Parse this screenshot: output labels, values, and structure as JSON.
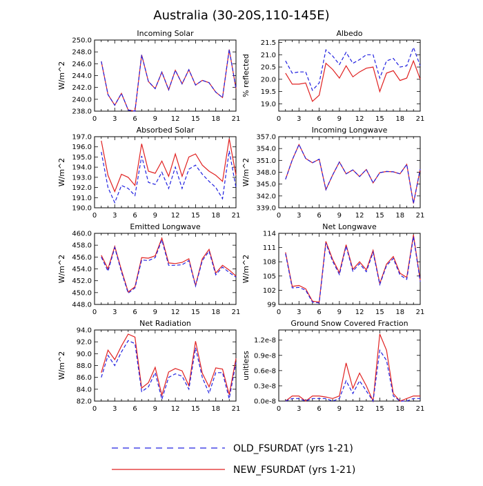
{
  "figure": {
    "title": "Australia (30-20S,110-145E)",
    "colors": {
      "old": "#2020e0",
      "new": "#e02020",
      "axis": "#000000"
    }
  },
  "legend": {
    "entries": [
      {
        "label": "OLD_FSURDAT (yrs 1-21)",
        "style": "dashed",
        "color": "#2020e0"
      },
      {
        "label": "NEW_FSURDAT (yrs 1-21)",
        "style": "solid",
        "color": "#e02020"
      }
    ]
  },
  "chart_data": [
    {
      "type": "line",
      "title": "Incoming Solar",
      "ylabel": "W/m^2",
      "xlim": [
        0,
        21
      ],
      "ylim": [
        238,
        250
      ],
      "xticks": [
        "0",
        "3",
        "6",
        "9",
        "12",
        "15",
        "18",
        "21"
      ],
      "yticks": [
        "238.0",
        "240.0",
        "242.0",
        "244.0",
        "246.0",
        "248.0",
        "250.0"
      ],
      "x": [
        1,
        2,
        3,
        4,
        5,
        6,
        7,
        8,
        9,
        10,
        11,
        12,
        13,
        14,
        15,
        16,
        17,
        18,
        19,
        20,
        21
      ],
      "series": [
        {
          "name": "OLD_FSURDAT (yrs 1-21)",
          "values": [
            246.4,
            240.8,
            239.0,
            241.0,
            238.2,
            238.0,
            247.5,
            243.0,
            241.8,
            244.6,
            241.6,
            244.9,
            242.6,
            245.0,
            242.4,
            243.2,
            242.8,
            241.2,
            240.3,
            248.4,
            241.8
          ]
        },
        {
          "name": "NEW_FSURDAT (yrs 1-21)",
          "values": [
            246.4,
            240.8,
            239.0,
            241.0,
            238.2,
            238.0,
            247.5,
            243.0,
            241.8,
            244.6,
            241.6,
            244.9,
            242.6,
            245.0,
            242.4,
            243.2,
            242.8,
            241.2,
            240.3,
            248.4,
            241.8
          ]
        }
      ]
    },
    {
      "type": "line",
      "title": "Albedo",
      "ylabel": "% reflected",
      "xlim": [
        0,
        21
      ],
      "ylim": [
        18.7,
        21.6
      ],
      "xticks": [
        "0",
        "3",
        "6",
        "9",
        "12",
        "15",
        "18",
        "21"
      ],
      "yticks": [
        "19.0",
        "19.5",
        "20.0",
        "20.5",
        "21.0",
        "21.5"
      ],
      "x": [
        1,
        2,
        3,
        4,
        5,
        6,
        7,
        8,
        9,
        10,
        11,
        12,
        13,
        14,
        15,
        16,
        17,
        18,
        19,
        20,
        21
      ],
      "series": [
        {
          "name": "OLD_FSURDAT (yrs 1-21)",
          "values": [
            20.75,
            20.25,
            20.3,
            20.3,
            19.55,
            19.85,
            21.2,
            20.95,
            20.6,
            21.1,
            20.65,
            20.8,
            21.0,
            21.0,
            20.05,
            20.75,
            20.85,
            20.5,
            20.55,
            21.3,
            20.55
          ]
        },
        {
          "name": "NEW_FSURDAT (yrs 1-21)",
          "values": [
            20.25,
            19.8,
            19.8,
            19.85,
            19.1,
            19.35,
            20.65,
            20.4,
            20.05,
            20.55,
            20.1,
            20.3,
            20.45,
            20.5,
            19.5,
            20.25,
            20.35,
            19.95,
            20.05,
            20.75,
            20.0
          ]
        }
      ]
    },
    {
      "type": "line",
      "title": "Absorbed Solar",
      "ylabel": "W/m^2",
      "xlim": [
        0,
        21
      ],
      "ylim": [
        190,
        197
      ],
      "xticks": [
        "0",
        "3",
        "6",
        "9",
        "12",
        "15",
        "18",
        "21"
      ],
      "yticks": [
        "190.0",
        "191.0",
        "192.0",
        "193.0",
        "194.0",
        "195.0",
        "196.0",
        "197.0"
      ],
      "x": [
        1,
        2,
        3,
        4,
        5,
        6,
        7,
        8,
        9,
        10,
        11,
        12,
        13,
        14,
        15,
        16,
        17,
        18,
        19,
        20,
        21
      ],
      "series": [
        {
          "name": "OLD_FSURDAT (yrs 1-21)",
          "values": [
            195.5,
            192.0,
            190.5,
            192.2,
            191.9,
            191.2,
            195.1,
            192.5,
            192.3,
            193.5,
            191.9,
            194.0,
            191.9,
            193.8,
            194.2,
            193.3,
            192.6,
            192.0,
            190.9,
            195.6,
            192.0
          ]
        },
        {
          "name": "NEW_FSURDAT (yrs 1-21)",
          "values": [
            196.6,
            193.2,
            191.6,
            193.3,
            193.0,
            192.2,
            196.3,
            193.6,
            193.4,
            194.6,
            193.1,
            195.3,
            193.1,
            195.0,
            195.3,
            194.2,
            193.6,
            193.2,
            192.6,
            196.8,
            193.2
          ]
        }
      ]
    },
    {
      "type": "line",
      "title": "Incoming Longwave",
      "ylabel": "W/m^2",
      "xlim": [
        0,
        21
      ],
      "ylim": [
        339,
        357
      ],
      "xticks": [
        "0",
        "3",
        "6",
        "9",
        "12",
        "15",
        "18",
        "21"
      ],
      "yticks": [
        "339.0",
        "342.0",
        "345.0",
        "348.0",
        "351.0",
        "354.0",
        "357.0"
      ],
      "x": [
        1,
        2,
        3,
        4,
        5,
        6,
        7,
        8,
        9,
        10,
        11,
        12,
        13,
        14,
        15,
        16,
        17,
        18,
        19,
        20,
        21
      ],
      "series": [
        {
          "name": "OLD_FSURDAT (yrs 1-21)",
          "values": [
            346.2,
            351.1,
            355.0,
            351.5,
            350.4,
            351.3,
            343.6,
            347.3,
            350.6,
            347.6,
            348.6,
            346.9,
            348.7,
            345.3,
            347.9,
            348.2,
            348.1,
            347.6,
            350.0,
            340.1,
            348.8
          ]
        },
        {
          "name": "NEW_FSURDAT (yrs 1-21)",
          "values": [
            346.2,
            351.1,
            355.0,
            351.5,
            350.4,
            351.3,
            343.6,
            347.3,
            350.6,
            347.6,
            348.6,
            346.9,
            348.7,
            345.3,
            347.9,
            348.2,
            348.1,
            347.6,
            350.0,
            340.1,
            348.8
          ]
        }
      ]
    },
    {
      "type": "line",
      "title": "Emitted Longwave",
      "ylabel": "W/m^2",
      "xlim": [
        0,
        21
      ],
      "ylim": [
        448,
        460
      ],
      "xticks": [
        "0",
        "3",
        "6",
        "9",
        "12",
        "15",
        "18",
        "21"
      ],
      "yticks": [
        "448.0",
        "450.0",
        "452.0",
        "454.0",
        "456.0",
        "458.0",
        "460.0"
      ],
      "x": [
        1,
        2,
        3,
        4,
        5,
        6,
        7,
        8,
        9,
        10,
        11,
        12,
        13,
        14,
        15,
        16,
        17,
        18,
        19,
        20,
        21
      ],
      "series": [
        {
          "name": "OLD_FSURDAT (yrs 1-21)",
          "values": [
            456.0,
            453.6,
            457.6,
            453.5,
            449.9,
            450.8,
            455.5,
            455.4,
            455.9,
            458.9,
            454.6,
            454.6,
            454.7,
            455.4,
            451.1,
            455.4,
            457.0,
            453.0,
            454.3,
            453.4,
            452.6
          ]
        },
        {
          "name": "NEW_FSURDAT (yrs 1-21)",
          "values": [
            456.3,
            454.0,
            457.8,
            453.8,
            450.1,
            451.0,
            455.9,
            455.8,
            456.2,
            459.2,
            455.0,
            454.9,
            455.1,
            455.7,
            451.2,
            455.7,
            457.3,
            453.3,
            454.6,
            453.8,
            452.8
          ]
        }
      ]
    },
    {
      "type": "line",
      "title": "Net Longwave",
      "ylabel": "W/m^2",
      "xlim": [
        0,
        21
      ],
      "ylim": [
        99,
        114
      ],
      "xticks": [
        "0",
        "3",
        "6",
        "9",
        "12",
        "15",
        "18",
        "21"
      ],
      "yticks": [
        "99",
        "102",
        "105",
        "108",
        "111",
        "114"
      ],
      "x": [
        1,
        2,
        3,
        4,
        5,
        6,
        7,
        8,
        9,
        10,
        11,
        12,
        13,
        14,
        15,
        16,
        17,
        18,
        19,
        20,
        21
      ],
      "series": [
        {
          "name": "OLD_FSURDAT (yrs 1-21)",
          "values": [
            109.7,
            102.5,
            102.6,
            102.0,
            99.5,
            99.3,
            111.9,
            108.1,
            105.3,
            111.3,
            106.0,
            107.6,
            105.9,
            110.0,
            103.2,
            107.2,
            108.7,
            105.2,
            104.3,
            113.3,
            103.8
          ]
        },
        {
          "name": "NEW_FSURDAT (yrs 1-21)",
          "values": [
            110.0,
            102.8,
            103.0,
            102.3,
            99.7,
            99.5,
            112.3,
            108.5,
            105.7,
            111.6,
            106.4,
            108.0,
            106.3,
            110.4,
            103.4,
            107.5,
            109.1,
            105.6,
            104.7,
            113.7,
            104.1
          ]
        }
      ]
    },
    {
      "type": "line",
      "title": "Net Radiation",
      "ylabel": "W/m^2",
      "xlim": [
        0,
        21
      ],
      "ylim": [
        82,
        94
      ],
      "xticks": [
        "0",
        "3",
        "6",
        "9",
        "12",
        "15",
        "18",
        "21"
      ],
      "yticks": [
        "82.0",
        "84.0",
        "86.0",
        "88.0",
        "90.0",
        "92.0",
        "94.0"
      ],
      "x": [
        1,
        2,
        3,
        4,
        5,
        6,
        7,
        8,
        9,
        10,
        11,
        12,
        13,
        14,
        15,
        16,
        17,
        18,
        19,
        20,
        21
      ],
      "series": [
        {
          "name": "OLD_FSURDAT (yrs 1-21)",
          "values": [
            86.0,
            89.7,
            88.0,
            90.3,
            92.2,
            91.7,
            83.6,
            84.4,
            86.8,
            82.3,
            86.0,
            86.6,
            86.2,
            84.0,
            91.0,
            86.0,
            83.3,
            86.8,
            86.8,
            82.4,
            88.5
          ]
        },
        {
          "name": "NEW_FSURDAT (yrs 1-21)",
          "values": [
            86.8,
            90.6,
            89.0,
            91.3,
            93.3,
            92.8,
            84.2,
            85.1,
            87.7,
            83.0,
            86.9,
            87.5,
            87.1,
            84.6,
            92.1,
            86.7,
            84.4,
            87.6,
            87.4,
            83.1,
            89.2
          ]
        }
      ]
    },
    {
      "type": "line",
      "title": "Ground Snow Covered Fraction",
      "ylabel": "unitless",
      "xlim": [
        0,
        21
      ],
      "ylim": [
        0,
        1.4
      ],
      "xticks": [
        "0",
        "3",
        "6",
        "9",
        "12",
        "15",
        "18",
        "21"
      ],
      "yticks": [
        "0.0e-8",
        "0.3e-8",
        "0.6e-8",
        "0.9e-8",
        "1.2e-8"
      ],
      "ytick_values": [
        0,
        0.3,
        0.6,
        0.9,
        1.2
      ],
      "x": [
        1,
        2,
        3,
        4,
        5,
        6,
        7,
        8,
        9,
        10,
        11,
        12,
        13,
        14,
        15,
        16,
        17,
        18,
        19,
        20,
        21
      ],
      "series": [
        {
          "name": "OLD_FSURDAT (yrs 1-21)",
          "values": [
            0.0,
            0.05,
            0.05,
            0.0,
            0.05,
            0.05,
            0.05,
            0.0,
            0.05,
            0.4,
            0.15,
            0.4,
            0.2,
            0.0,
            1.0,
            0.8,
            0.1,
            0.0,
            0.0,
            0.05,
            0.05
          ]
        },
        {
          "name": "NEW_FSURDAT (yrs 1-21)",
          "values": [
            0.0,
            0.1,
            0.1,
            0.0,
            0.1,
            0.1,
            0.08,
            0.05,
            0.1,
            0.75,
            0.25,
            0.55,
            0.3,
            0.0,
            1.32,
            1.0,
            0.15,
            0.0,
            0.05,
            0.1,
            0.1
          ]
        }
      ]
    }
  ]
}
